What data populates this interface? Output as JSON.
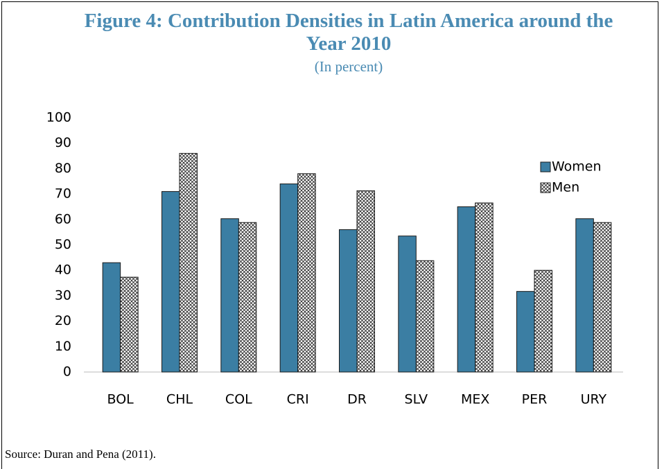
{
  "chart_data": {
    "type": "bar",
    "title": "Figure 4: Contribution Densities in Latin America around the Year 2010",
    "subtitle": "(In percent)",
    "categories": [
      "BOL",
      "CHL",
      "COL",
      "CRI",
      "DR",
      "SLV",
      "MEX",
      "PER",
      "URY"
    ],
    "series": [
      {
        "name": "Women",
        "color": "#3b7ea3",
        "values": [
          43,
          71,
          60.3,
          74,
          56,
          53.5,
          65,
          31.7,
          60.3
        ]
      },
      {
        "name": "Men",
        "color": "#ffffff",
        "pattern": "crosshatch",
        "values": [
          37.3,
          86,
          58.8,
          78,
          71.3,
          43.8,
          66.5,
          40,
          58.8
        ]
      }
    ],
    "ylim": [
      0,
      100
    ],
    "yticks": [
      0,
      10,
      20,
      30,
      40,
      50,
      60,
      70,
      80,
      90,
      100
    ],
    "grid": false,
    "legend": "right",
    "source": "Source: Duran and Pena (2011)."
  }
}
